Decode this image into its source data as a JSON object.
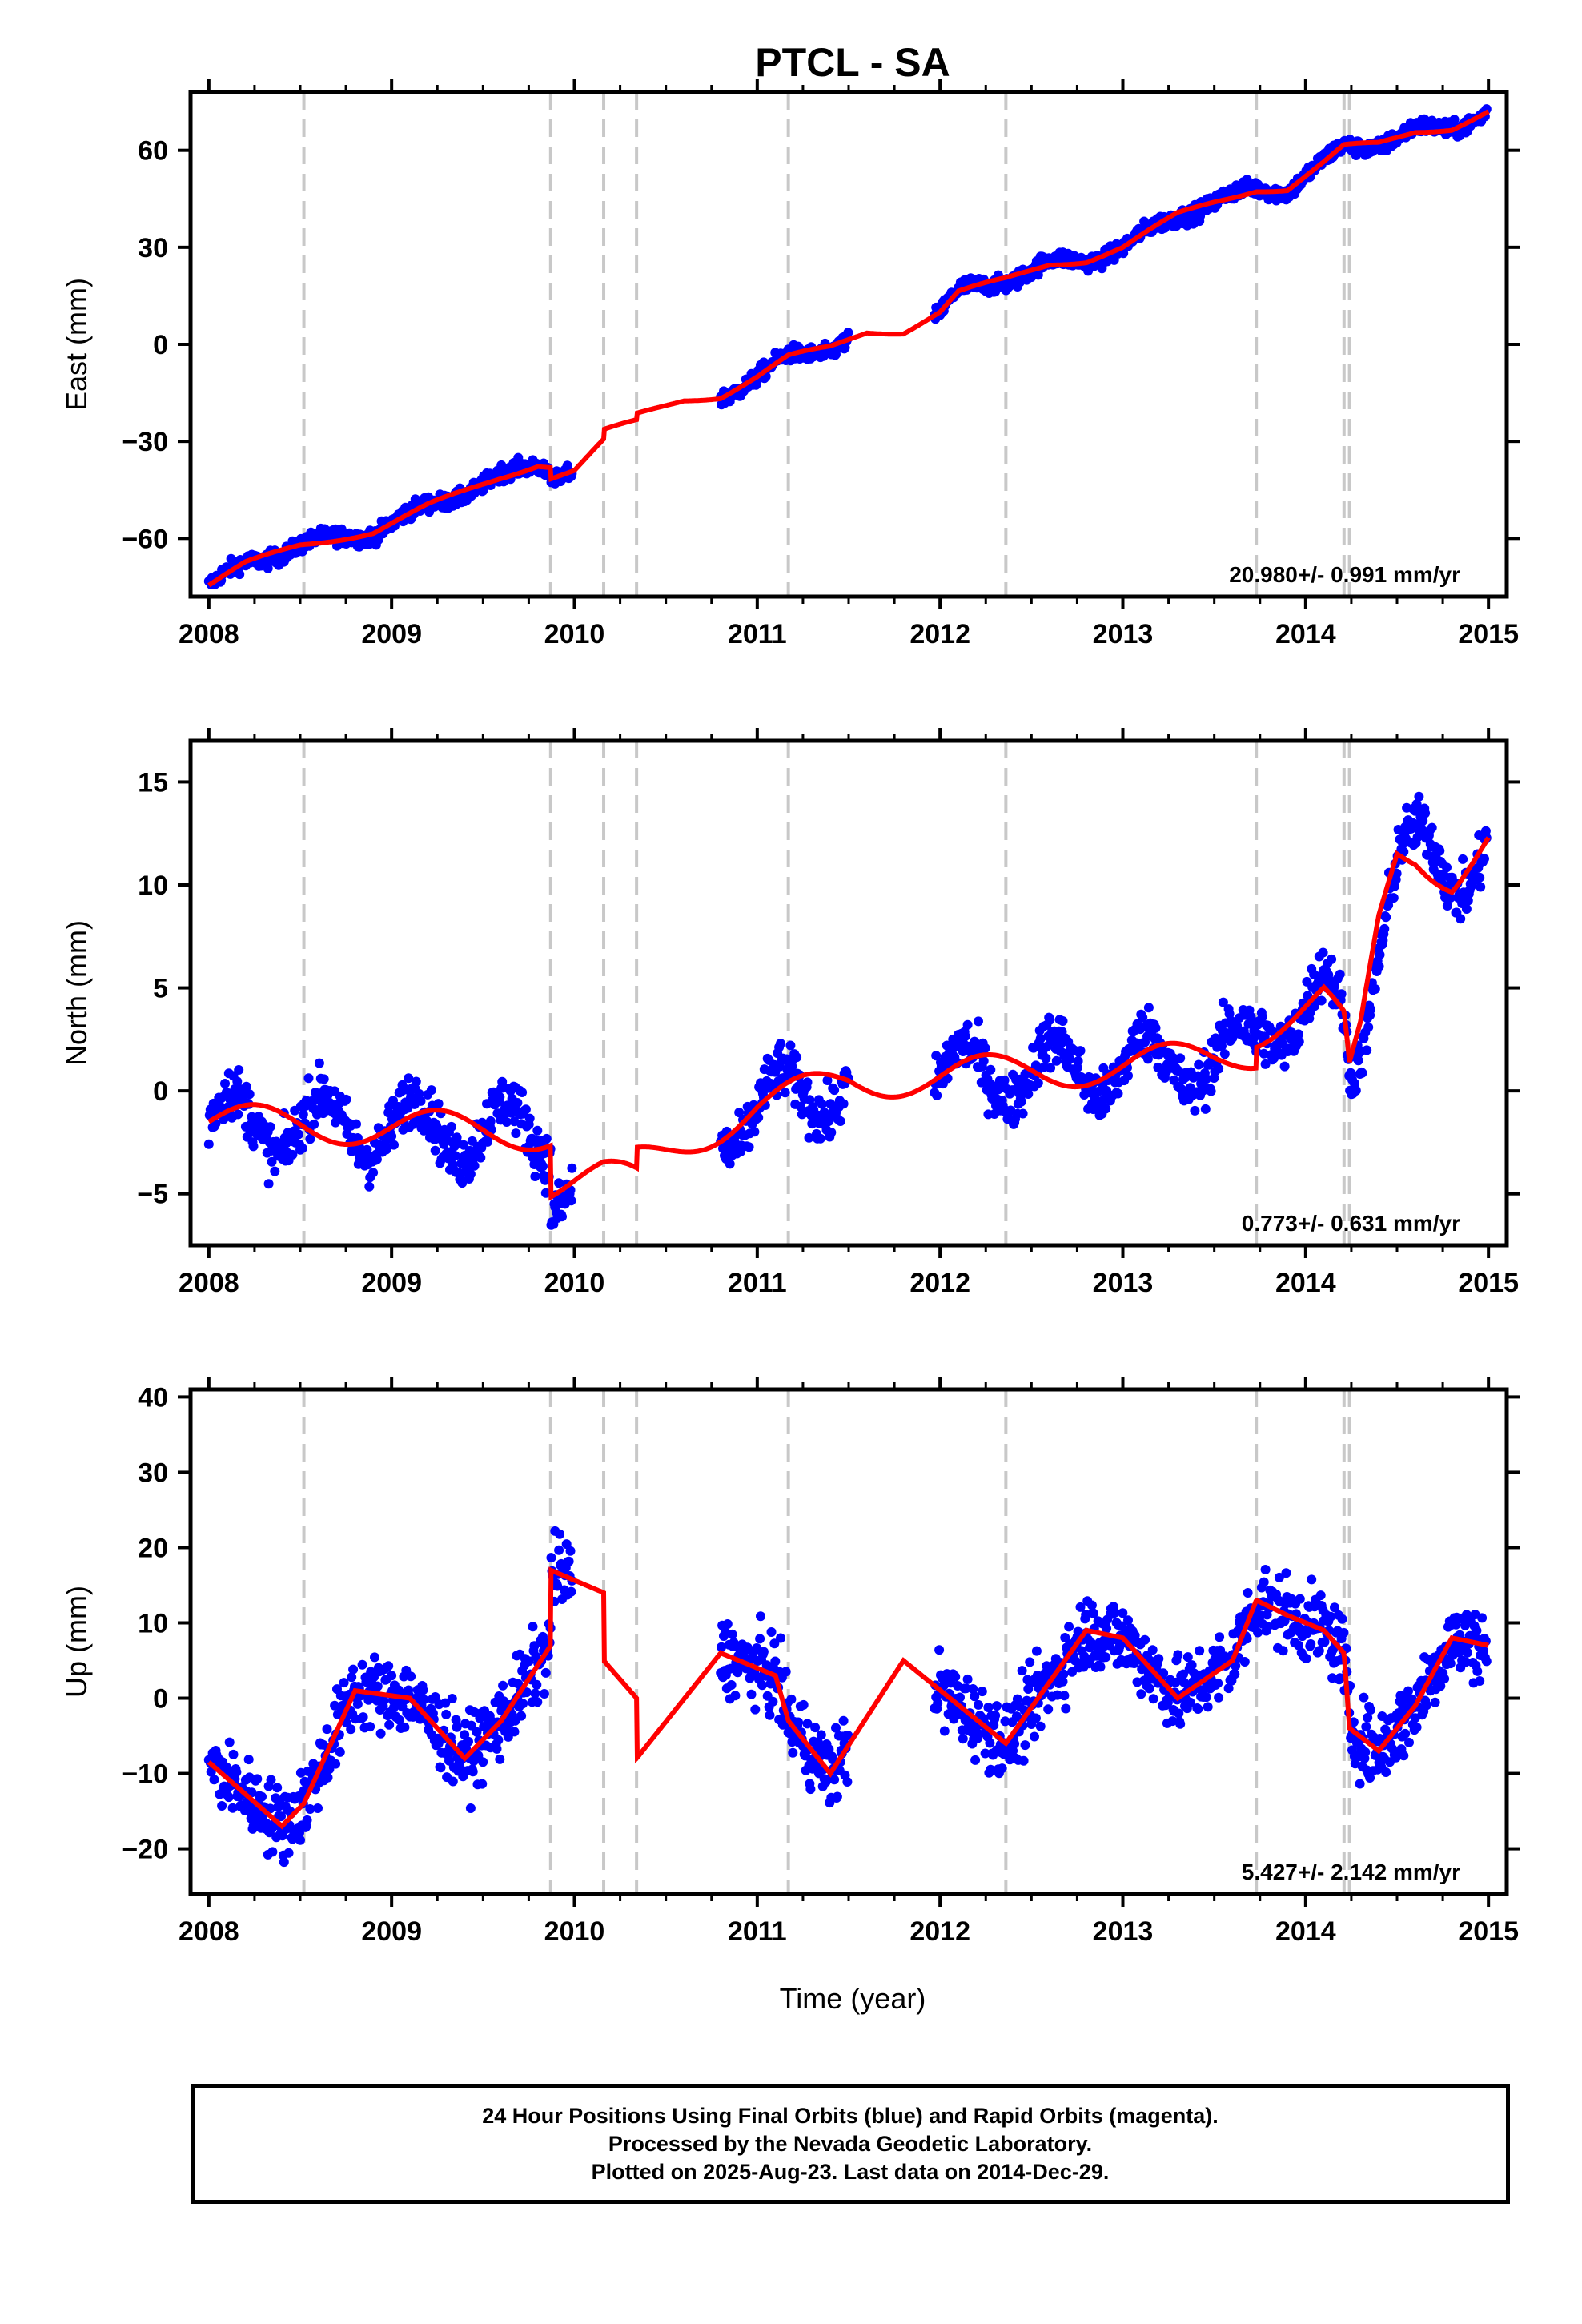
{
  "title": "PTCL - SA",
  "xlabel": "Time (year)",
  "colors": {
    "data": "#0000ff",
    "model": "#ff0000",
    "steps": "#c8c8c8",
    "frame": "#000000"
  },
  "footer": {
    "line1": "24 Hour Positions Using Final Orbits (blue) and Rapid Orbits (magenta).",
    "line2": "Processed by the Nevada Geodetic Laboratory.",
    "line3": "Plotted on 2025-Aug-23. Last data on 2014-Dec-29."
  },
  "chart_data": [
    {
      "type": "scatter",
      "panel": "east",
      "ylabel": "East (mm)",
      "rate_label": "20.980+/- 0.991 mm/yr",
      "xlim": [
        2007.9,
        2015.1
      ],
      "ylim": [
        -78,
        78
      ],
      "xticks": [
        2008,
        2009,
        2010,
        2011,
        2012,
        2013,
        2014,
        2015
      ],
      "yticks": [
        -60,
        -30,
        0,
        30,
        60
      ],
      "step_lines": [
        2008.52,
        2009.87,
        2010.16,
        2010.34,
        2011.17,
        2012.36,
        2013.73,
        2014.21,
        2014.24
      ],
      "data_segments": [
        [
          2008.0,
          2009.99
        ],
        [
          2010.8,
          2011.5
        ],
        [
          2011.97,
          2014.99
        ]
      ],
      "model": {
        "knots": [
          [
            2008.0,
            -74.5
          ],
          [
            2008.2,
            -68
          ],
          [
            2008.5,
            -62
          ],
          [
            2008.9,
            -58
          ],
          [
            2009.2,
            -50
          ],
          [
            2009.6,
            -41
          ],
          [
            2009.8,
            -37
          ],
          [
            2009.87,
            -37.5
          ],
          [
            2009.87,
            -41
          ],
          [
            2010.0,
            -39
          ],
          [
            2010.16,
            -30
          ],
          [
            2010.16,
            -27
          ],
          [
            2010.34,
            -24
          ],
          [
            2010.34,
            -22
          ],
          [
            2010.6,
            -17
          ],
          [
            2010.8,
            -16
          ],
          [
            2011.0,
            -10
          ],
          [
            2011.17,
            -4
          ],
          [
            2011.4,
            -1
          ],
          [
            2011.6,
            4
          ],
          [
            2011.8,
            4
          ],
          [
            2012.0,
            10
          ],
          [
            2012.1,
            16
          ],
          [
            2012.36,
            20
          ],
          [
            2012.6,
            25
          ],
          [
            2012.8,
            26
          ],
          [
            2013.0,
            30
          ],
          [
            2013.3,
            40
          ],
          [
            2013.5,
            44
          ],
          [
            2013.73,
            48
          ],
          [
            2013.9,
            48
          ],
          [
            2014.1,
            56
          ],
          [
            2014.21,
            61
          ],
          [
            2014.4,
            62
          ],
          [
            2014.6,
            66
          ],
          [
            2014.8,
            67
          ],
          [
            2015.0,
            72
          ]
        ],
        "noise": 2.5,
        "seasonal_amp": 1.4
      }
    },
    {
      "type": "scatter",
      "panel": "north",
      "ylabel": "North (mm)",
      "rate_label": "0.773+/- 0.631 mm/yr",
      "xlim": [
        2007.9,
        2015.1
      ],
      "ylim": [
        -7.5,
        17.0
      ],
      "xticks": [
        2008,
        2009,
        2010,
        2011,
        2012,
        2013,
        2014,
        2015
      ],
      "yticks": [
        -5,
        0,
        5,
        10,
        15
      ],
      "step_lines": [
        2008.52,
        2009.87,
        2010.16,
        2010.34,
        2011.17,
        2012.36,
        2013.73,
        2014.21,
        2014.24
      ],
      "data_segments": [
        [
          2008.0,
          2009.99
        ],
        [
          2010.8,
          2011.5
        ],
        [
          2011.97,
          2014.99
        ]
      ],
      "model": {
        "knots": [
          [
            2008.0,
            -1.5
          ],
          [
            2009.87,
            -2.0
          ],
          [
            2009.87,
            -4.5
          ],
          [
            2010.16,
            -4.2
          ],
          [
            2010.34,
            -4.5
          ],
          [
            2010.34,
            -3.5
          ],
          [
            2011.0,
            -0.8
          ],
          [
            2011.5,
            0.5
          ],
          [
            2012.0,
            0.7
          ],
          [
            2012.5,
            1.0
          ],
          [
            2013.0,
            1.2
          ],
          [
            2013.5,
            1.6
          ],
          [
            2013.73,
            2.0
          ],
          [
            2013.73,
            3.0
          ],
          [
            2014.1,
            4.5
          ],
          [
            2014.21,
            3.0
          ],
          [
            2014.24,
            0.5
          ],
          [
            2014.3,
            2.5
          ],
          [
            2014.4,
            8.0
          ],
          [
            2014.5,
            11.5
          ],
          [
            2014.6,
            11.5
          ],
          [
            2014.8,
            10.5
          ],
          [
            2015.0,
            12.3
          ]
        ],
        "noise": 1.3,
        "seasonal_amp": 1.5
      }
    },
    {
      "type": "scatter",
      "panel": "up",
      "ylabel": "Up (mm)",
      "rate_label": "5.427+/- 2.142 mm/yr",
      "xlim": [
        2007.9,
        2015.1
      ],
      "ylim": [
        -26,
        41
      ],
      "xticks": [
        2008,
        2009,
        2010,
        2011,
        2012,
        2013,
        2014,
        2015
      ],
      "yticks": [
        -20,
        -10,
        0,
        10,
        20,
        30,
        40
      ],
      "step_lines": [
        2008.52,
        2009.87,
        2010.16,
        2010.34,
        2011.17,
        2012.36,
        2013.73,
        2014.21,
        2014.24
      ],
      "data_segments": [
        [
          2008.0,
          2009.99
        ],
        [
          2010.8,
          2011.5
        ],
        [
          2011.97,
          2014.99
        ]
      ],
      "model": {
        "knots": [
          [
            2008.0,
            -8.5
          ],
          [
            2008.4,
            -17
          ],
          [
            2008.52,
            -14
          ],
          [
            2008.8,
            1
          ],
          [
            2009.1,
            0
          ],
          [
            2009.4,
            -8
          ],
          [
            2009.6,
            -3
          ],
          [
            2009.87,
            7
          ],
          [
            2009.87,
            17
          ],
          [
            2010.16,
            14
          ],
          [
            2010.16,
            5
          ],
          [
            2010.34,
            0
          ],
          [
            2010.34,
            -8
          ],
          [
            2010.8,
            6
          ],
          [
            2011.1,
            3
          ],
          [
            2011.17,
            -3
          ],
          [
            2011.4,
            -10
          ],
          [
            2011.8,
            5
          ],
          [
            2012.36,
            -6
          ],
          [
            2012.8,
            9
          ],
          [
            2013.0,
            8
          ],
          [
            2013.3,
            0
          ],
          [
            2013.6,
            5
          ],
          [
            2013.73,
            13
          ],
          [
            2013.9,
            11
          ],
          [
            2014.1,
            9
          ],
          [
            2014.21,
            6
          ],
          [
            2014.24,
            -4
          ],
          [
            2014.4,
            -7
          ],
          [
            2014.6,
            -1
          ],
          [
            2014.8,
            8
          ],
          [
            2015.0,
            7
          ]
        ],
        "noise": 5.0,
        "seasonal_amp": 0.0
      }
    }
  ]
}
